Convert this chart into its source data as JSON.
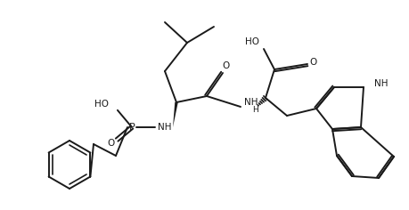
{
  "background_color": "#ffffff",
  "line_color": "#1a1a1a",
  "line_width": 1.4,
  "figure_width": 4.59,
  "figure_height": 2.36,
  "dpi": 100,
  "atoms": {
    "HO_phosphorus": "HO",
    "O_phosphorus": "O",
    "P": "P",
    "NH_leu": "NH",
    "O_amide": "O",
    "NH_trp": "NH",
    "H_trp": "H",
    "HO_trp": "HO",
    "O_trp": "O",
    "NH_indole": "NH"
  }
}
